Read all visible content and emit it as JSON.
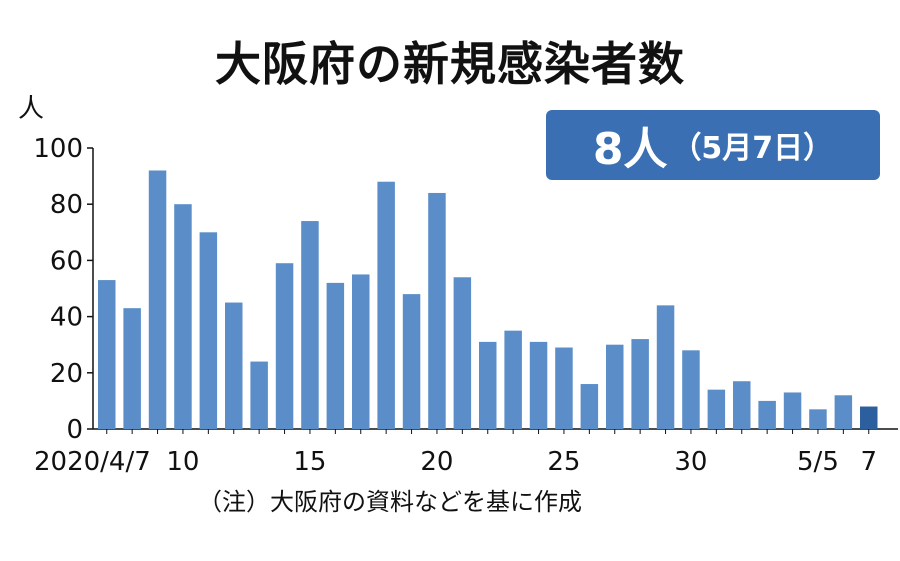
{
  "chart_data": {
    "type": "bar",
    "title": "大阪府の新規感染者数",
    "ylabel": "人",
    "ylim": [
      0,
      100
    ],
    "yticks": [
      0,
      20,
      40,
      60,
      80,
      100
    ],
    "x_tick_labels": [
      {
        "index": 0,
        "label": "2020/4/7"
      },
      {
        "index": 3,
        "label": "10"
      },
      {
        "index": 8,
        "label": "15"
      },
      {
        "index": 13,
        "label": "20"
      },
      {
        "index": 18,
        "label": "25"
      },
      {
        "index": 23,
        "label": "30"
      },
      {
        "index": 28,
        "label": "5/5"
      },
      {
        "index": 30,
        "label": "7"
      }
    ],
    "categories": [
      "4/7",
      "4/8",
      "4/9",
      "4/10",
      "4/11",
      "4/12",
      "4/13",
      "4/14",
      "4/15",
      "4/16",
      "4/17",
      "4/18",
      "4/19",
      "4/20",
      "4/21",
      "4/22",
      "4/23",
      "4/24",
      "4/25",
      "4/26",
      "4/27",
      "4/28",
      "4/29",
      "4/30",
      "5/1",
      "5/2",
      "5/3",
      "5/4",
      "5/5",
      "5/6",
      "5/7"
    ],
    "values": [
      53,
      43,
      92,
      80,
      70,
      45,
      24,
      59,
      74,
      52,
      55,
      88,
      48,
      84,
      54,
      31,
      35,
      31,
      29,
      16,
      30,
      32,
      44,
      28,
      14,
      17,
      10,
      13,
      7,
      12,
      8
    ],
    "bar_color": "#5b8ec8",
    "highlight_color": "#2b5f9e",
    "highlight_index": 30,
    "grid": false
  },
  "badge": {
    "value": "8人",
    "date": "（5月7日）",
    "color": "#3a6fb3"
  },
  "note": "（注）大阪府の資料などを基に作成"
}
